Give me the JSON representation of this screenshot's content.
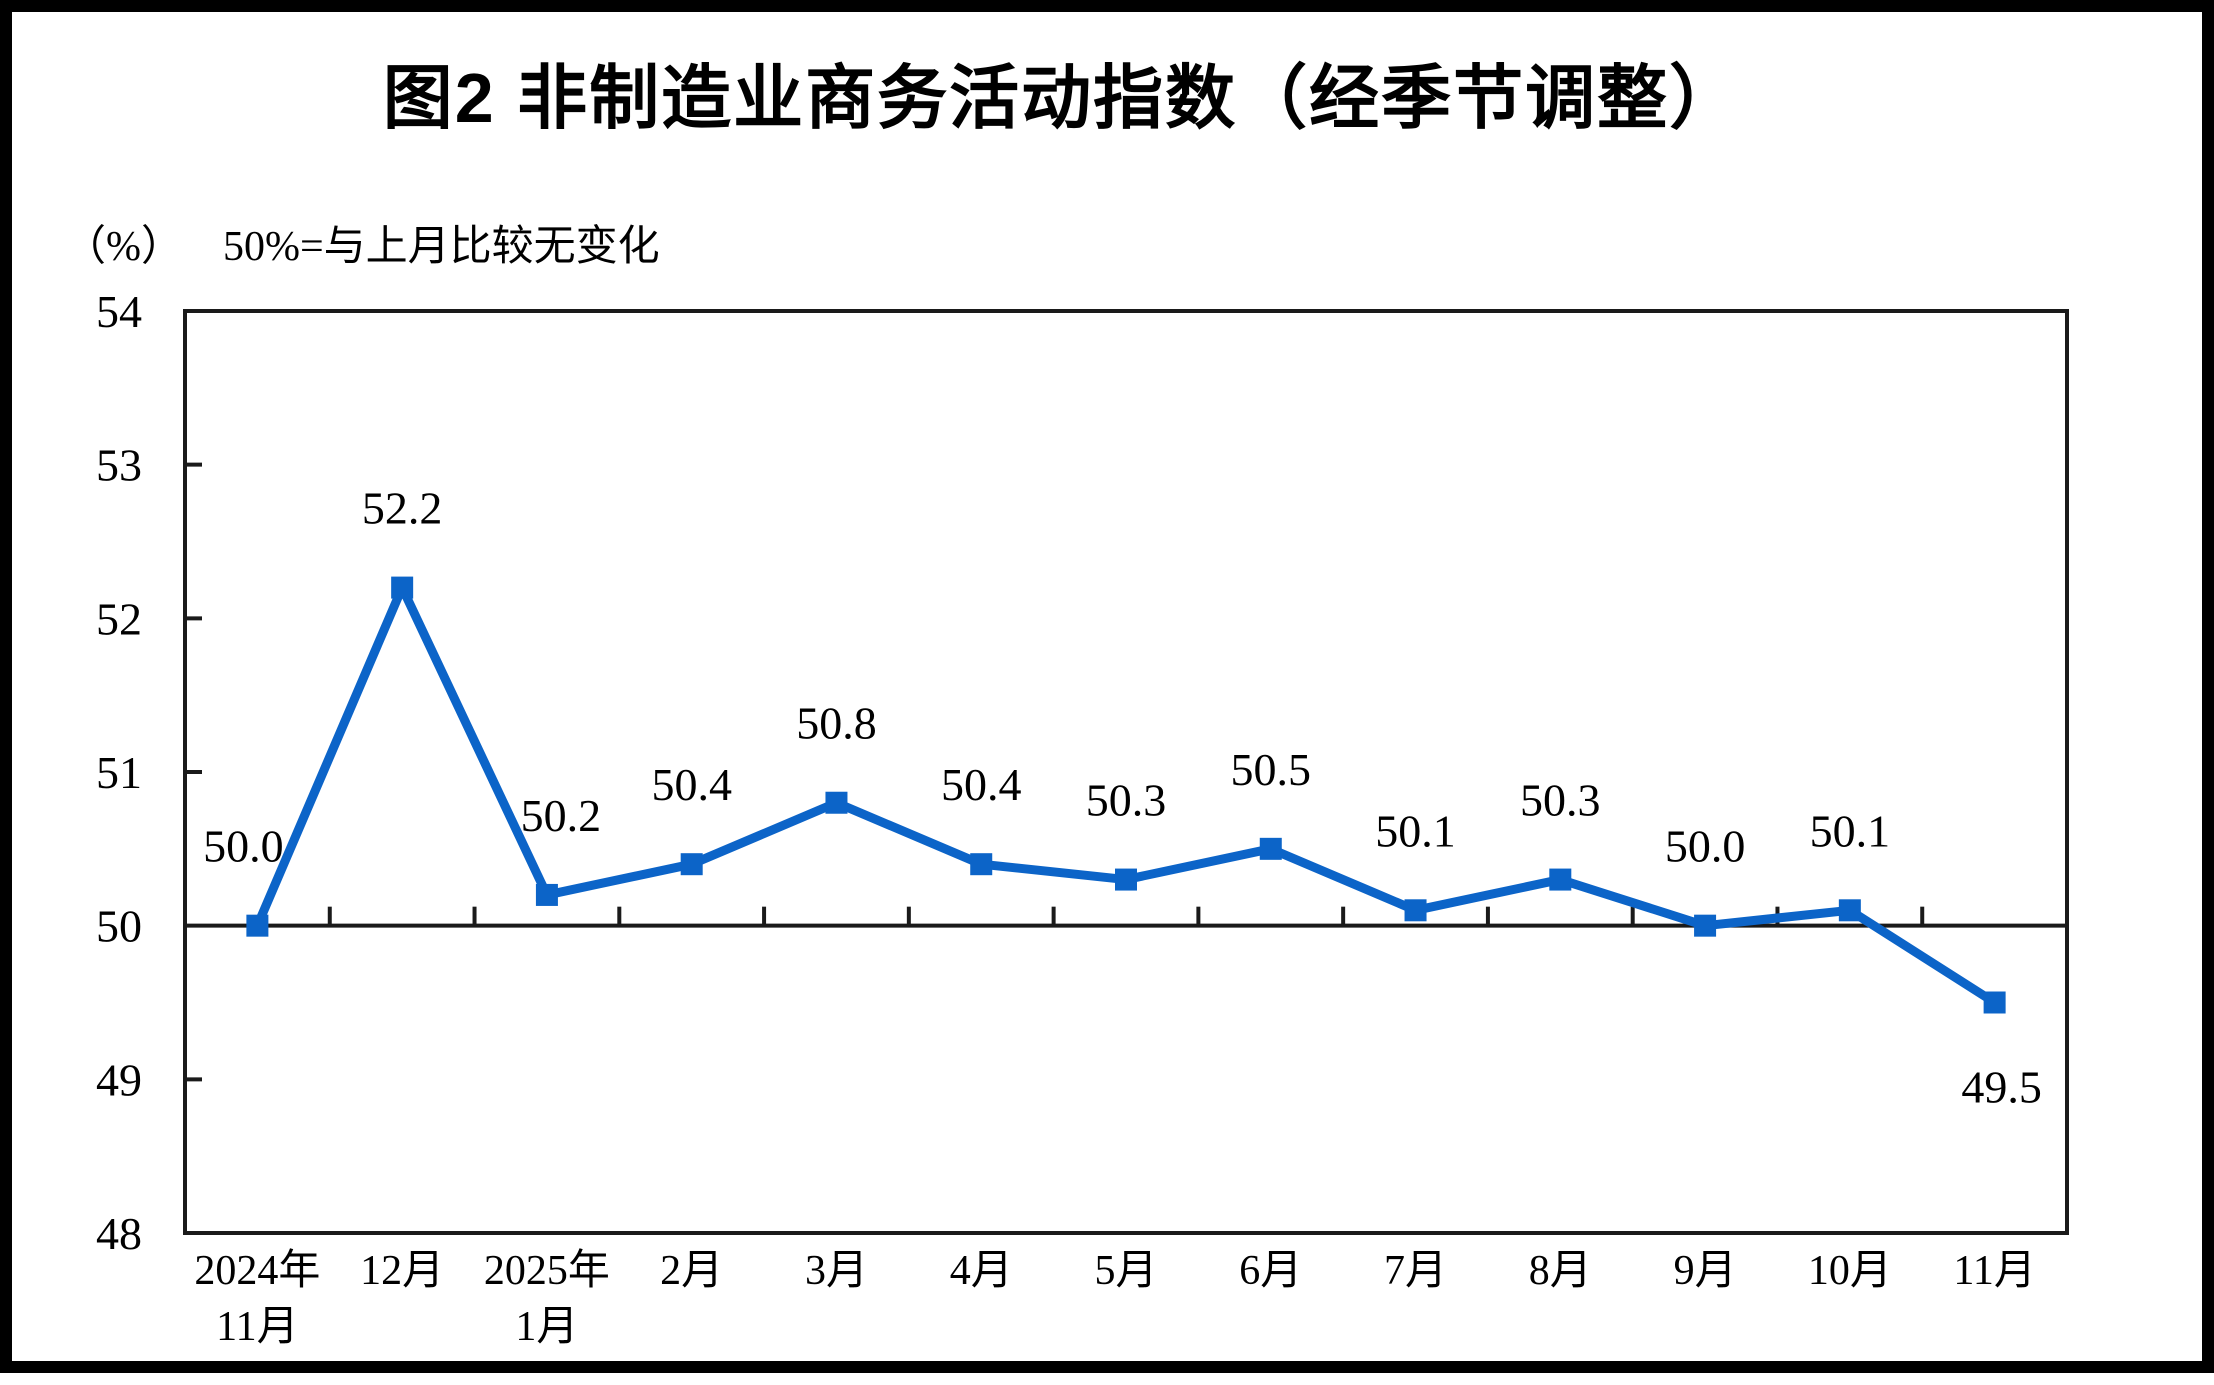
{
  "figure": {
    "title": "图2 非制造业商务活动指数（经季节调整）",
    "unit_label": "（%）",
    "reference_note": "50%=与上月比较无变化"
  },
  "chart_data": {
    "type": "line",
    "title": "图2 非制造业商务活动指数（经季节调整）",
    "categories": [
      "2024年\n11月",
      "12月",
      "2025年\n1月",
      "2月",
      "3月",
      "4月",
      "5月",
      "6月",
      "7月",
      "8月",
      "9月",
      "10月",
      "11月"
    ],
    "series": [
      {
        "name": "非制造业商务活动指数",
        "values": [
          50.0,
          52.2,
          50.2,
          50.4,
          50.8,
          50.4,
          50.3,
          50.5,
          50.1,
          50.3,
          50.0,
          50.1,
          49.5
        ]
      }
    ],
    "data_labels": [
      "50.0",
      "52.2",
      "50.2",
      "50.4",
      "50.8",
      "50.4",
      "50.3",
      "50.5",
      "50.1",
      "50.3",
      "50.0",
      "50.1",
      "49.5"
    ],
    "xlabel": "",
    "ylabel": "（%）",
    "ylim": [
      48,
      54
    ],
    "yticks": [
      48,
      49,
      50,
      51,
      52,
      53,
      54
    ],
    "reference_line": 50,
    "grid": "off",
    "legend": "none",
    "line_color": "#0C64C8",
    "axis_color": "#1A1A1A",
    "text_color": "#000000"
  }
}
